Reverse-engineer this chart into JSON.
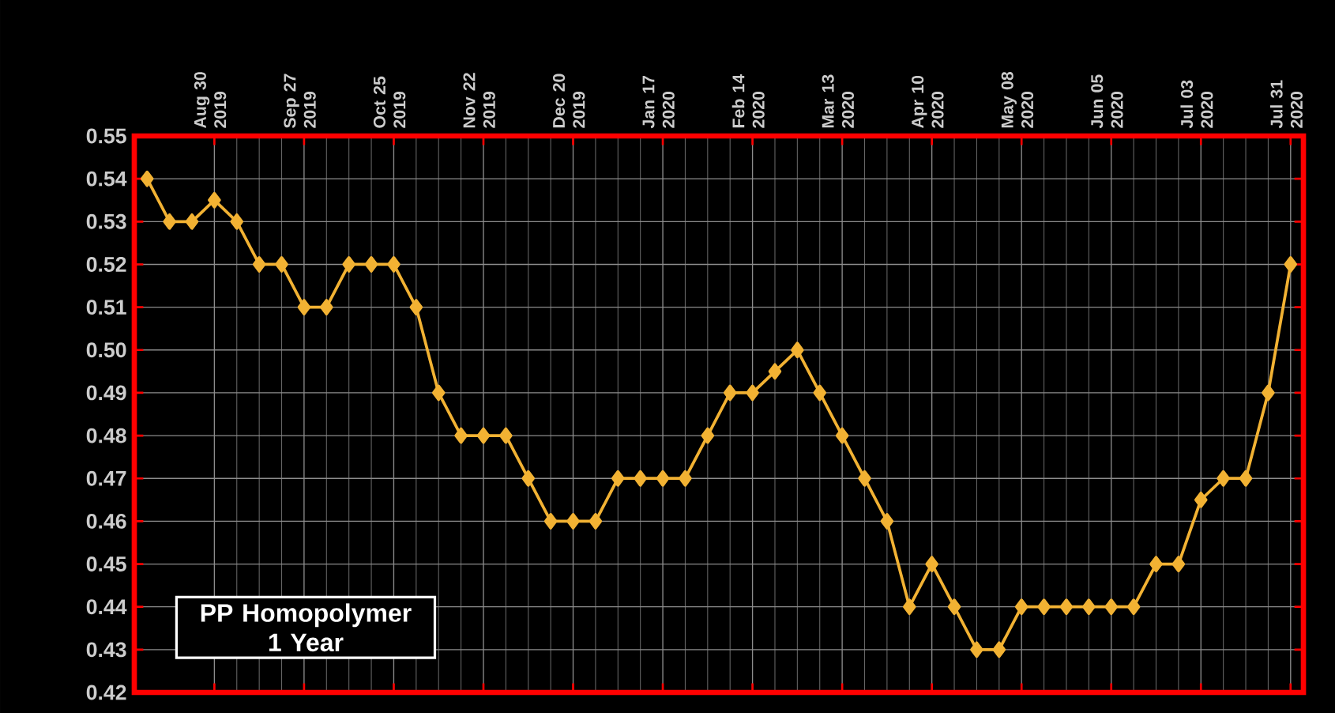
{
  "chart_data": {
    "type": "line",
    "x": [
      "2019-08-09",
      "2019-08-16",
      "2019-08-23",
      "2019-08-30",
      "2019-09-06",
      "2019-09-13",
      "2019-09-20",
      "2019-09-27",
      "2019-10-04",
      "2019-10-11",
      "2019-10-18",
      "2019-10-25",
      "2019-11-01",
      "2019-11-08",
      "2019-11-15",
      "2019-11-22",
      "2019-11-29",
      "2019-12-06",
      "2019-12-13",
      "2019-12-20",
      "2019-12-27",
      "2020-01-03",
      "2020-01-10",
      "2020-01-17",
      "2020-01-24",
      "2020-01-31",
      "2020-02-07",
      "2020-02-14",
      "2020-02-21",
      "2020-02-28",
      "2020-03-06",
      "2020-03-13",
      "2020-03-20",
      "2020-03-27",
      "2020-04-03",
      "2020-04-10",
      "2020-04-17",
      "2020-04-24",
      "2020-05-01",
      "2020-05-08",
      "2020-05-15",
      "2020-05-22",
      "2020-05-29",
      "2020-06-05",
      "2020-06-12",
      "2020-06-19",
      "2020-06-26",
      "2020-07-03",
      "2020-07-10",
      "2020-07-17",
      "2020-07-24",
      "2020-07-31"
    ],
    "series": [
      {
        "color": "#f2b233",
        "values": [
          0.54,
          0.53,
          0.53,
          0.535,
          0.53,
          0.52,
          0.52,
          0.51,
          0.51,
          0.52,
          0.52,
          0.52,
          0.51,
          0.49,
          0.48,
          0.48,
          0.48,
          0.47,
          0.46,
          0.46,
          0.46,
          0.47,
          0.47,
          0.47,
          0.47,
          0.48,
          0.49,
          0.49,
          0.495,
          0.5,
          0.49,
          0.48,
          0.47,
          0.46,
          0.44,
          0.45,
          0.44,
          0.43,
          0.43,
          0.44,
          0.44,
          0.44,
          0.44,
          0.44,
          0.44,
          0.45,
          0.45,
          0.465,
          0.47,
          0.47,
          0.49,
          0.52
        ]
      }
    ],
    "xlim": [
      "2019-08-05",
      "2020-08-04"
    ],
    "xticks": [
      {
        "value": "2019-08-30",
        "label": "Aug 30 2019"
      },
      {
        "value": "2019-09-27",
        "label": "Sep 27 2019"
      },
      {
        "value": "2019-10-25",
        "label": "Oct 25 2019"
      },
      {
        "value": "2019-11-22",
        "label": "Nov 22 2019"
      },
      {
        "value": "2019-12-20",
        "label": "Dec 20 2019"
      },
      {
        "value": "2020-01-17",
        "label": "Jan 17 2020"
      },
      {
        "value": "2020-02-14",
        "label": "Feb 14 2020"
      },
      {
        "value": "2020-03-13",
        "label": "Mar 13 2020"
      },
      {
        "value": "2020-04-10",
        "label": "Apr 10 2020"
      },
      {
        "value": "2020-05-08",
        "label": "May 08 2020"
      },
      {
        "value": "2020-06-05",
        "label": "Jun 05 2020"
      },
      {
        "value": "2020-07-03",
        "label": "Jul 03 2020"
      },
      {
        "value": "2020-07-31",
        "label": "Jul 31 2020"
      }
    ],
    "ylim": [
      0.42,
      0.55
    ],
    "yticks": [
      {
        "value": 0.42,
        "label": "0.42"
      },
      {
        "value": 0.43,
        "label": "0.43"
      },
      {
        "value": 0.44,
        "label": "0.44"
      },
      {
        "value": 0.45,
        "label": "0.45"
      },
      {
        "value": 0.46,
        "label": "0.46"
      },
      {
        "value": 0.47,
        "label": "0.47"
      },
      {
        "value": 0.48,
        "label": "0.48"
      },
      {
        "value": 0.49,
        "label": "0.49"
      },
      {
        "value": 0.5,
        "label": "0.50"
      },
      {
        "value": 0.51,
        "label": "0.51"
      },
      {
        "value": 0.52,
        "label": "0.52"
      },
      {
        "value": 0.53,
        "label": "0.53"
      },
      {
        "value": 0.54,
        "label": "0.54"
      },
      {
        "value": 0.55,
        "label": "0.55"
      }
    ],
    "annotations": [
      "PP Homopolymer 1 Year"
    ],
    "grid": true,
    "marker": "diamond",
    "line_style": "solid"
  }
}
